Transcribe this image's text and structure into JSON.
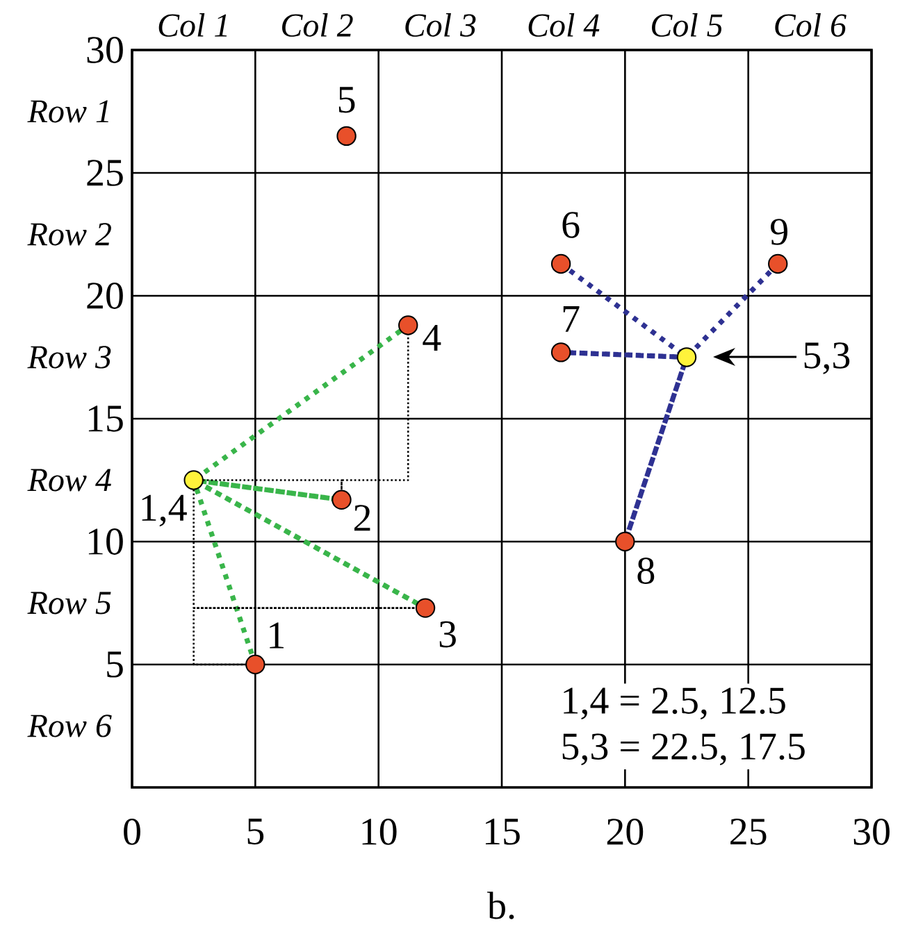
{
  "chart_data": {
    "type": "scatter",
    "xlim": [
      0,
      30
    ],
    "ylim": [
      0,
      30
    ],
    "xticks": [
      0,
      5,
      10,
      15,
      20,
      25,
      30
    ],
    "yticks": [
      5,
      10,
      15,
      20,
      25,
      30
    ],
    "grid": true,
    "series": [
      {
        "type": "line",
        "color": "#39b54a",
        "line_style": "dotted",
        "x": [
          5,
          2.5,
          8.5,
          2.5,
          11.9,
          2.5,
          11.2
        ],
        "values": [
          5,
          12.5,
          11.7,
          12.5,
          7.3,
          12.5,
          18.8
        ]
      },
      {
        "type": "line",
        "color": "#2e3192",
        "line_style": "dotted",
        "x": [
          17.4,
          22.5,
          17.4,
          22.5,
          20,
          22.5,
          26.2
        ],
        "values": [
          21.3,
          17.5,
          17.7,
          17.5,
          10,
          17.5,
          21.3
        ]
      },
      {
        "type": "line",
        "color": "#000000",
        "line_style": "dotted",
        "x": [
          11.2,
          11.2,
          8.5,
          8.5,
          8.5,
          2.5,
          2.5,
          11.9,
          2.5,
          2.5,
          5
        ],
        "values": [
          18.8,
          12.5,
          12.5,
          11.7,
          12.5,
          12.5,
          7.3,
          7.3,
          7.3,
          5,
          5
        ]
      },
      {
        "color": "#e8502a",
        "marker": "circle",
        "x": [
          5,
          8.5,
          11.9,
          11.2,
          8.7,
          17.4,
          17.4,
          20,
          26.2
        ],
        "values": [
          5,
          11.7,
          7.3,
          18.8,
          26.5,
          21.3,
          17.7,
          10,
          21.3
        ]
      },
      {
        "color": "#fff33b",
        "marker": "circle",
        "x": [
          2.5,
          22.5
        ],
        "values": [
          12.5,
          17.5
        ]
      }
    ],
    "annotations": [
      "Col 1",
      "Col 2",
      "Col 3",
      "Col 4",
      "Col 5",
      "Col 6",
      "Row 1",
      "Row 2",
      "Row 3",
      "Row 4",
      "Row 5",
      "Row 6",
      {
        "text": "1",
        "x": 5,
        "y": 5
      },
      {
        "text": "2",
        "x": 8.5,
        "y": 11.7
      },
      {
        "text": "3",
        "x": 11.9,
        "y": 7.3
      },
      {
        "text": "4",
        "x": 11.2,
        "y": 18.8
      },
      {
        "text": "5",
        "x": 8.7,
        "y": 26.5
      },
      {
        "text": "6",
        "x": 17.4,
        "y": 21.3
      },
      {
        "text": "7",
        "x": 17.4,
        "y": 17.7
      },
      {
        "text": "8",
        "x": 20,
        "y": 10
      },
      {
        "text": "9",
        "x": 26.2,
        "y": 21.3
      },
      {
        "text": "1,4",
        "x": 2.5,
        "y": 12.5
      },
      "5,3",
      "1,4 = 2.5, 12.5",
      "5,3 = 22.5, 17.5",
      "b."
    ]
  }
}
